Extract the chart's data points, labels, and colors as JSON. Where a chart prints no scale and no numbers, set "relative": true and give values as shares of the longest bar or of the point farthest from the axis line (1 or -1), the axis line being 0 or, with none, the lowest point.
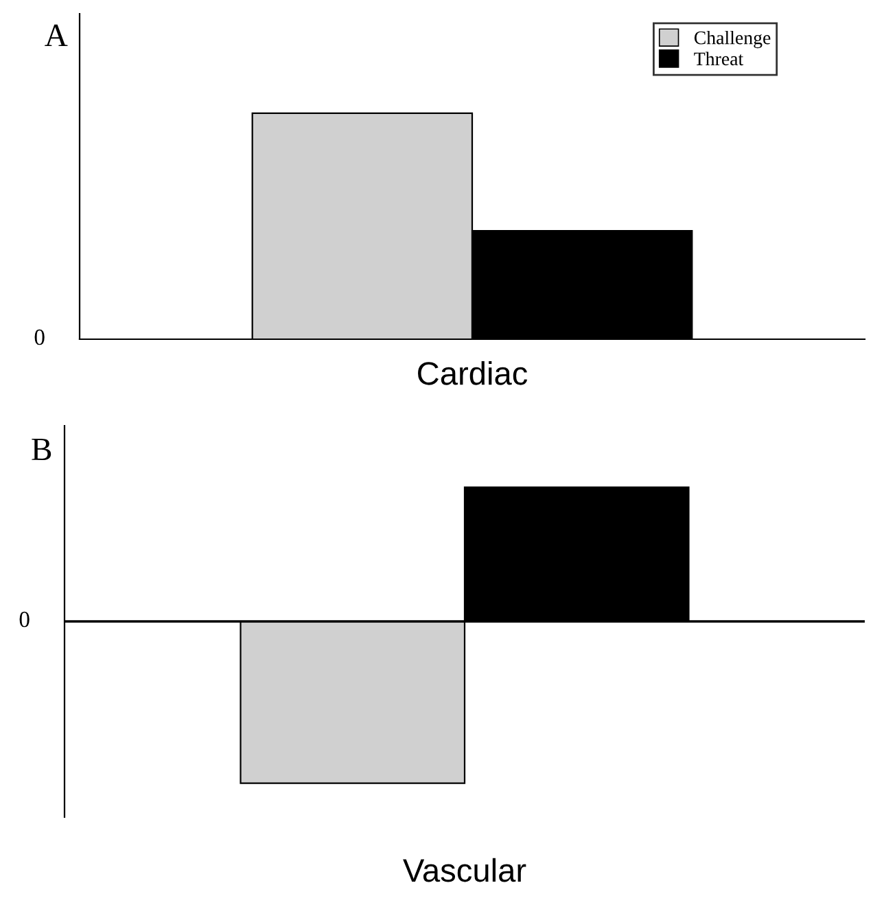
{
  "chart_data": [
    {
      "type": "bar",
      "title": "A",
      "xlabel": "Cardiac",
      "categories": [
        null
      ],
      "relative": true,
      "annotations": [
        "0"
      ],
      "legend": "top right",
      "series": [
        {
          "name": "Challenge",
          "color": "#d0d0d0",
          "values": [
            1
          ]
        },
        {
          "name": "Threat",
          "color": "#000000",
          "values": [
            0.48
          ]
        }
      ]
    },
    {
      "type": "bar",
      "title": "B",
      "xlabel": "Vascular",
      "categories": [
        null
      ],
      "relative": true,
      "annotations": [
        "0"
      ],
      "series": [
        {
          "color": "#d0d0d0",
          "values": [
            -1
          ]
        },
        {
          "color": "#000000",
          "values": [
            0.83
          ]
        }
      ]
    }
  ]
}
